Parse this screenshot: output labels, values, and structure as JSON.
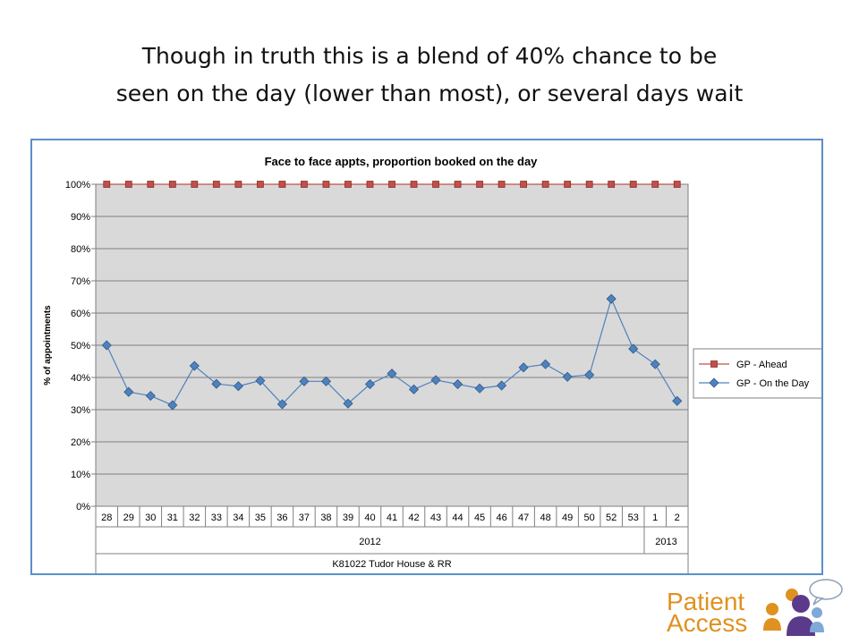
{
  "slide": {
    "title_line1": "Though in truth this is a blend of 40% chance to be",
    "title_line2": "seen on the day (lower than most), or several days wait"
  },
  "logo": {
    "line1": "Patient",
    "line2": "Access"
  },
  "colors": {
    "ahead": "#c0504d",
    "on_the_day": "#4f81bd",
    "plot_bg": "#d9d9d9",
    "frame": "#5b8fc7",
    "logo_orange": "#e0911f",
    "logo_purple": "#5b3a8c"
  },
  "chart_data": {
    "type": "line",
    "title": "Face to face appts, proportion booked on the day",
    "ylabel": "% of appointments",
    "ylim": [
      0,
      100
    ],
    "yticks": [
      "0%",
      "10%",
      "20%",
      "30%",
      "40%",
      "50%",
      "60%",
      "70%",
      "80%",
      "90%",
      "100%"
    ],
    "categories": [
      "28",
      "29",
      "30",
      "31",
      "32",
      "33",
      "34",
      "35",
      "36",
      "37",
      "38",
      "39",
      "40",
      "41",
      "42",
      "43",
      "44",
      "45",
      "46",
      "47",
      "48",
      "49",
      "50",
      "52",
      "53",
      "1",
      "2"
    ],
    "year_groups": [
      {
        "label": "2012",
        "count": 25
      },
      {
        "label": "2013",
        "count": 2
      }
    ],
    "practice_label": "K81022 Tudor House & RR",
    "grid": true,
    "legend_position": "right",
    "series": [
      {
        "name": "GP - Ahead",
        "marker": "square",
        "values": [
          100,
          100,
          100,
          100,
          100,
          100,
          100,
          100,
          100,
          100,
          100,
          100,
          100,
          100,
          100,
          100,
          100,
          100,
          100,
          100,
          100,
          100,
          100,
          100,
          100,
          100,
          100
        ]
      },
      {
        "name": "GP - On the Day",
        "marker": "diamond",
        "values": [
          50,
          35.5,
          34.3,
          31.4,
          43.6,
          38,
          37.3,
          39,
          31.7,
          38.8,
          38.8,
          31.9,
          37.9,
          41.2,
          36.3,
          39.2,
          37.9,
          36.6,
          37.5,
          43.1,
          44.1,
          40.2,
          40.8,
          64.4,
          48.9,
          44.1,
          32.7
        ]
      }
    ]
  }
}
